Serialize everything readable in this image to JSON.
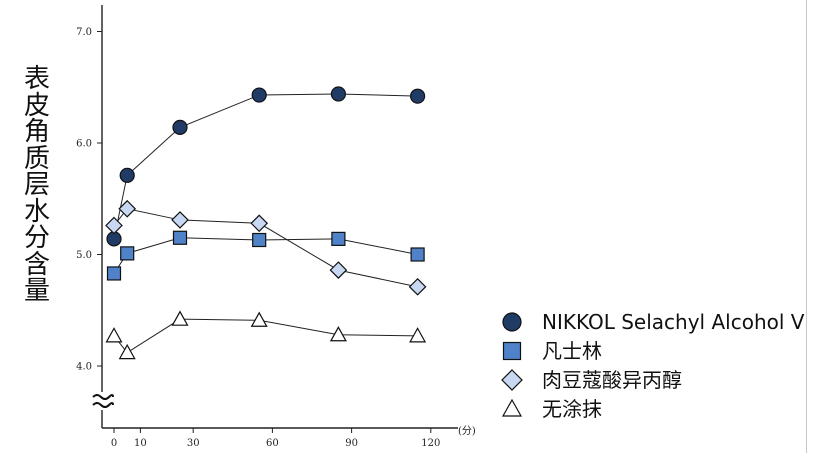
{
  "chart_data": {
    "type": "line",
    "ylabel": "表皮角质层水分含量",
    "x_unit": "(分)",
    "x_ticks": [
      0,
      10,
      30,
      60,
      90,
      120
    ],
    "y_ticks": [
      "4.0",
      "5.0",
      "6.0",
      "7.0"
    ],
    "ylim": [
      3.6,
      7.3
    ],
    "axis_break": true,
    "legend_position": "bottom-right",
    "grid": false,
    "series": [
      {
        "name": "NIKKOL Selachyl Alcohol V",
        "marker": "circle",
        "fill": "#1f3b66",
        "points": [
          [
            0,
            5.14
          ],
          [
            5,
            5.71
          ],
          [
            25,
            6.14
          ],
          [
            55,
            6.43
          ],
          [
            85,
            6.44
          ],
          [
            115,
            6.42
          ]
        ]
      },
      {
        "name": "凡士林",
        "marker": "square",
        "fill": "#4f82c8",
        "points": [
          [
            0,
            4.83
          ],
          [
            5,
            5.01
          ],
          [
            25,
            5.15
          ],
          [
            55,
            5.13
          ],
          [
            85,
            5.14
          ],
          [
            115,
            5.0
          ]
        ]
      },
      {
        "name": "肉豆蔻酸异丙醇",
        "marker": "diamond",
        "fill": "#c9d8f2",
        "points": [
          [
            0,
            5.26
          ],
          [
            5,
            5.41
          ],
          [
            25,
            5.31
          ],
          [
            55,
            5.28
          ],
          [
            85,
            4.86
          ],
          [
            115,
            4.71
          ]
        ]
      },
      {
        "name": "无涂抹",
        "marker": "triangle",
        "fill": "#ffffff",
        "points": [
          [
            0,
            4.27
          ],
          [
            5,
            4.12
          ],
          [
            25,
            4.42
          ],
          [
            55,
            4.41
          ],
          [
            85,
            4.28
          ],
          [
            115,
            4.27
          ]
        ]
      }
    ]
  }
}
